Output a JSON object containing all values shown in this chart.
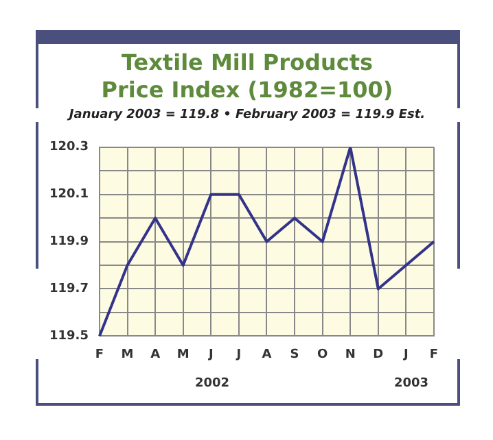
{
  "chart_data": {
    "type": "line",
    "title": "Textile Mill Products\nPrice Index (1982=100)",
    "subtitle": "January 2003 = 119.8  •  February 2003 = 119.9 Est.",
    "categories": [
      "F",
      "M",
      "A",
      "M",
      "J",
      "J",
      "A",
      "S",
      "O",
      "N",
      "D",
      "J",
      "F"
    ],
    "series": [
      {
        "color": "#33338a",
        "values": [
          119.5,
          119.8,
          120.0,
          119.8,
          120.1,
          120.1,
          119.9,
          120.0,
          119.9,
          120.3,
          119.7,
          119.8,
          119.9
        ]
      }
    ],
    "ylim": [
      119.5,
      120.3
    ],
    "yticks": [
      119.5,
      {
        "value": 119.6,
        "label": null
      },
      119.7,
      {
        "value": 119.8,
        "label": null
      },
      119.9,
      {
        "value": 120.0,
        "label": null
      },
      120.1,
      {
        "value": 120.2,
        "label": null
      },
      120.3
    ],
    "annotations": [
      "2002",
      "2003"
    ],
    "grid": true,
    "legend": false,
    "marker": "none",
    "line_style": "solid"
  }
}
